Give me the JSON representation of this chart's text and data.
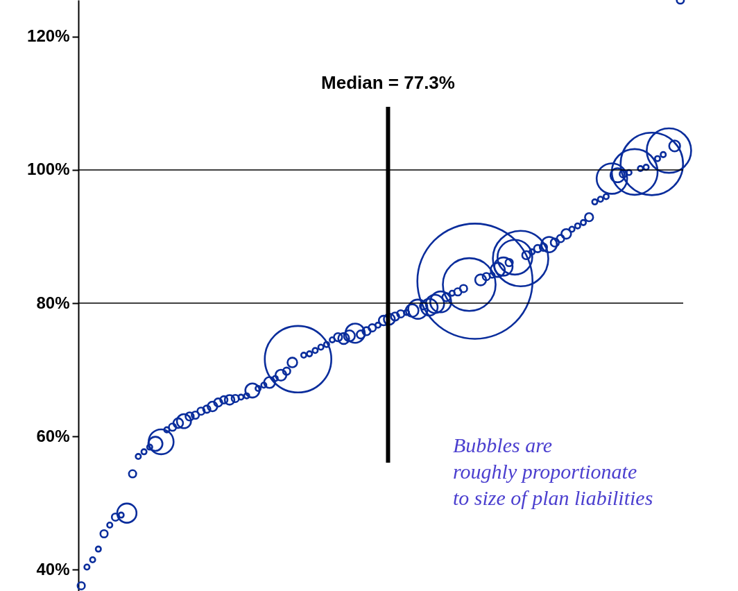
{
  "chart_data": {
    "type": "bubble",
    "marker": "circle",
    "grid": false,
    "legend": false,
    "categories": [
      null,
      null,
      null,
      null,
      null,
      null,
      null,
      null,
      null,
      null,
      null,
      null,
      null,
      null,
      null,
      null,
      null,
      null,
      null,
      null,
      null,
      null,
      null,
      null,
      null,
      null,
      null,
      null,
      null,
      null,
      null,
      null,
      null,
      null,
      null,
      null,
      null,
      null,
      null,
      null,
      null,
      null,
      null,
      null,
      null,
      null,
      null,
      null,
      null,
      null,
      null,
      null,
      null,
      null,
      null,
      null,
      null,
      null,
      null,
      null,
      null,
      null,
      null,
      null,
      null,
      null,
      null,
      null,
      null,
      null,
      null,
      null,
      null,
      null,
      null,
      null,
      null,
      null,
      null,
      null,
      null,
      null,
      null,
      null,
      null,
      null,
      null,
      null,
      null,
      null,
      null,
      null,
      null,
      null,
      null,
      null,
      null,
      null,
      null,
      null,
      null,
      null,
      null,
      null,
      null,
      null
    ],
    "series": [
      {
        "color": "#0a2d9c",
        "values": [
          37.6,
          40.4,
          41.5,
          43.1,
          45.4,
          46.7,
          47.9,
          48.2,
          48.5,
          54.4,
          57.0,
          57.7,
          58.4,
          58.9,
          59.2,
          61.0,
          61.4,
          62.0,
          62.3,
          63.0,
          63.2,
          63.8,
          64.1,
          64.5,
          65.1,
          65.5,
          65.5,
          65.7,
          65.9,
          66.1,
          66.9,
          67.2,
          67.7,
          68.1,
          68.7,
          69.2,
          69.8,
          71.1,
          71.6,
          72.2,
          72.4,
          72.9,
          73.4,
          73.8,
          74.5,
          74.9,
          74.7,
          75.1,
          75.5,
          75.3,
          75.8,
          76.3,
          76.7,
          77.4,
          77.6,
          78.0,
          78.4,
          78.6,
          78.9,
          79.1,
          79.6,
          79.4,
          79.9,
          80.2,
          80.9,
          81.5,
          81.7,
          82.2,
          82.8,
          83.3,
          83.5,
          84.0,
          84.2,
          85.0,
          85.5,
          86.1,
          86.9,
          86.7,
          87.2,
          87.7,
          88.2,
          88.4,
          88.8,
          89.1,
          89.7,
          90.4,
          91.1,
          91.6,
          92.1,
          92.9,
          95.2,
          95.6,
          96.0,
          98.7,
          99.2,
          99.4,
          99.6,
          99.7,
          100.2,
          100.4,
          100.9,
          101.7,
          102.3,
          102.9,
          103.6,
          125.5
        ],
        "sizes": [
          0.004,
          0.002,
          0.002,
          0.002,
          0.004,
          0.002,
          0.004,
          0.002,
          0.028,
          0.004,
          0.002,
          0.002,
          0.002,
          0.015,
          0.047,
          0.002,
          0.004,
          0.007,
          0.015,
          0.005,
          0.004,
          0.004,
          0.004,
          0.007,
          0.005,
          0.004,
          0.007,
          0.004,
          0.002,
          0.002,
          0.015,
          0.002,
          0.002,
          0.009,
          0.002,
          0.009,
          0.004,
          0.007,
          0.334,
          0.002,
          0.002,
          0.002,
          0.002,
          0.002,
          0.002,
          0.005,
          0.009,
          0.009,
          0.028,
          0.005,
          0.005,
          0.004,
          0.002,
          0.007,
          0.009,
          0.005,
          0.004,
          0.002,
          0.012,
          0.028,
          0.004,
          0.021,
          0.025,
          0.033,
          0.005,
          0.002,
          0.004,
          0.004,
          0.21,
          1,
          0.009,
          0.004,
          0.002,
          0.015,
          0.025,
          0.004,
          0.091,
          0.232,
          0.005,
          0.002,
          0.004,
          0.004,
          0.018,
          0.005,
          0.004,
          0.007,
          0.002,
          0.002,
          0.002,
          0.005,
          0.002,
          0.002,
          0.002,
          0.07,
          0.015,
          0.004,
          0.002,
          0.158,
          0.002,
          0.002,
          0.294,
          0.002,
          0.002,
          0.149,
          0.009,
          0.004
        ]
      }
    ],
    "ylim": [
      36.5,
      125.5
    ],
    "yticks": [
      {
        "value": 40,
        "label": "40%"
      },
      {
        "value": 60,
        "label": "60%"
      },
      {
        "value": 80,
        "label": "80%"
      },
      {
        "value": 100,
        "label": "100%"
      },
      {
        "value": 120,
        "label": "120%"
      }
    ],
    "ref_lines": [
      {
        "axis": "y",
        "value": 80,
        "color": "#000000"
      },
      {
        "axis": "y",
        "value": 100,
        "color": "#000000"
      }
    ],
    "annotations": [
      "Median = 77.3%",
      "Bubbles are\nroughly proportionate\nto size of plan liabilities"
    ]
  }
}
